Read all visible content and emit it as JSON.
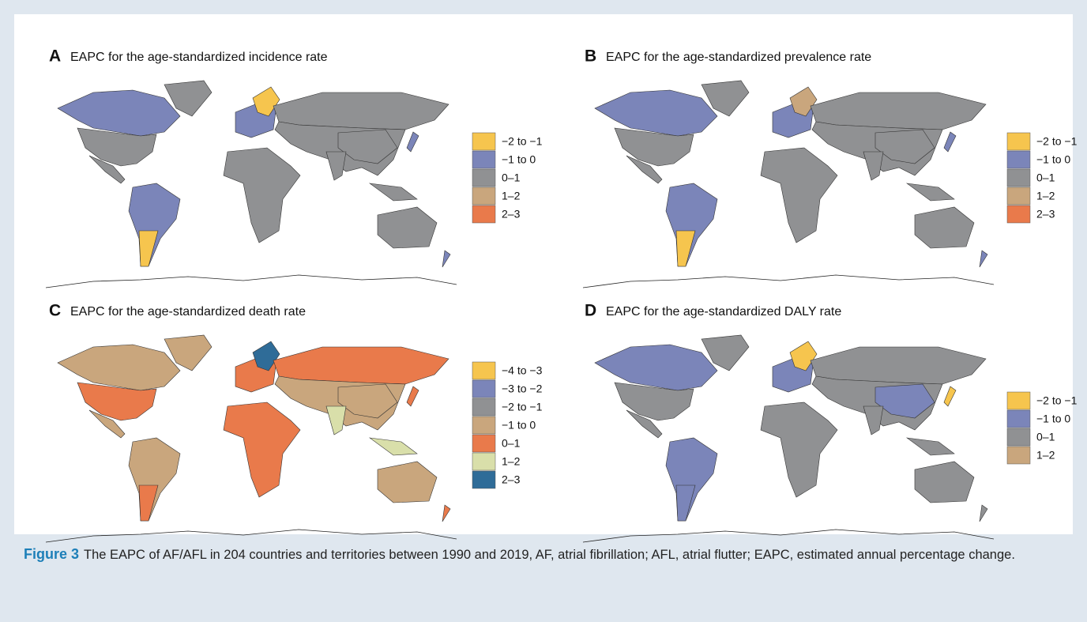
{
  "figure": {
    "panels": [
      {
        "letter": "A",
        "title": "EAPC for the age-standardized incidence rate",
        "legend": [
          {
            "label": "−2 to −1",
            "color": "#f6c54e"
          },
          {
            "label": "−1 to 0",
            "color": "#7b85b9"
          },
          {
            "label": "0–1",
            "color": "#909193"
          },
          {
            "label": "1–2",
            "color": "#c9a67d"
          },
          {
            "label": "2–3",
            "color": "#e97a4b"
          }
        ]
      },
      {
        "letter": "B",
        "title": "EAPC for the age-standardized prevalence rate",
        "legend": [
          {
            "label": "−2 to −1",
            "color": "#f6c54e"
          },
          {
            "label": "−1 to 0",
            "color": "#7b85b9"
          },
          {
            "label": "0–1",
            "color": "#909193"
          },
          {
            "label": "1–2",
            "color": "#c9a67d"
          },
          {
            "label": "2–3",
            "color": "#e97a4b"
          }
        ]
      },
      {
        "letter": "C",
        "title": "EAPC for the age-standardized death rate",
        "legend": [
          {
            "label": "−4 to −3",
            "color": "#f6c54e"
          },
          {
            "label": "−3 to −2",
            "color": "#7b85b9"
          },
          {
            "label": "−2 to −1",
            "color": "#909193"
          },
          {
            "label": "−1 to 0",
            "color": "#c9a67d"
          },
          {
            "label": "0–1",
            "color": "#e97a4b"
          },
          {
            "label": "1–2",
            "color": "#d9dfaa"
          },
          {
            "label": "2–3",
            "color": "#2f6c98"
          }
        ]
      },
      {
        "letter": "D",
        "title": "EAPC for the age-standardized DALY rate",
        "legend": [
          {
            "label": "−2 to −1",
            "color": "#f6c54e"
          },
          {
            "label": "−1 to 0",
            "color": "#7b85b9"
          },
          {
            "label": "0–1",
            "color": "#909193"
          },
          {
            "label": "1–2",
            "color": "#c9a67d"
          }
        ]
      }
    ],
    "caption": {
      "label": "Figure 3",
      "text": "The EAPC of AF/AFL in 204 countries and territories between 1990 and 2019, AF, atrial fibrillation; AFL, atrial flutter; EAPC, estimated annual percentage change."
    }
  }
}
